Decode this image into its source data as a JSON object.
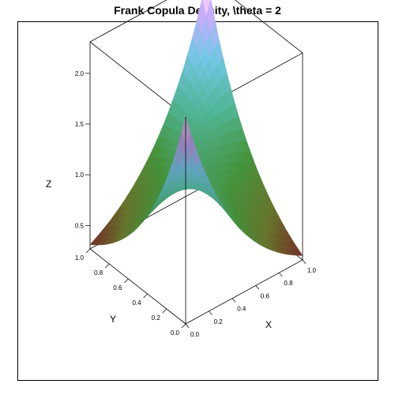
{
  "chart_data": {
    "type": "surface",
    "title": "Frank Copula Density, \\theta = 2",
    "xlabel": "X",
    "ylabel": "Y",
    "zlabel": "Z",
    "theta": 2,
    "xlim": [
      0,
      1
    ],
    "ylim": [
      0,
      1
    ],
    "zlim": [
      0.27,
      2.31
    ],
    "x_ticks": [
      "0.0",
      "0.2",
      "0.4",
      "0.6",
      "0.8",
      "1.0"
    ],
    "y_ticks": [
      "0.0",
      "0.2",
      "0.4",
      "0.6",
      "0.8",
      "1.0"
    ],
    "z_ticks": [
      "0.5",
      "1.0",
      "1.5",
      "2.0"
    ],
    "grid": false,
    "colors": {
      "low": "#7a2a2a",
      "mid_low": "#4f8a2a",
      "mid": "#33b3a0",
      "high": "#c9a0e8",
      "peak": "#ffd9ff"
    }
  }
}
